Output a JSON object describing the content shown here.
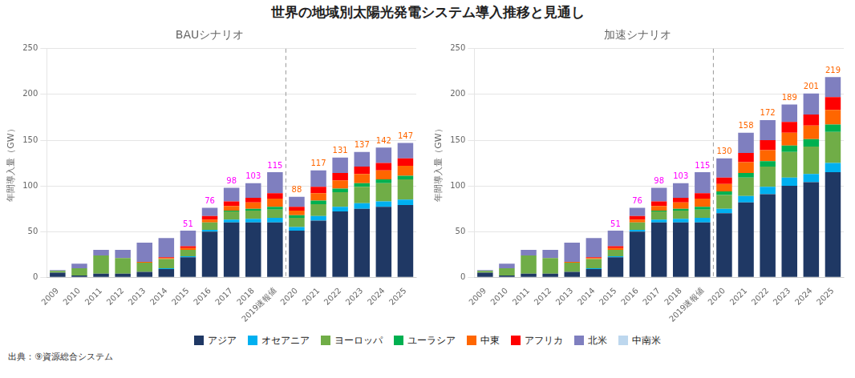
{
  "title": "世界の地域別太陽光発電システム導入推移と見通し",
  "subtitle": "出典：⑨資源総合システム",
  "legend": "bottom",
  "chart_data": [
    {
      "type": "bar",
      "stacked": true,
      "grid": true,
      "title": "BAUシナリオ",
      "ylabel": "年間導入量（GW）",
      "ylim": [
        0,
        250
      ],
      "yticks": [
        0,
        50,
        100,
        150,
        200,
        250
      ],
      "categories": [
        "2009",
        "2010",
        "2011",
        "2012",
        "2013",
        "2014",
        "2015",
        "2016",
        "2017",
        "2018",
        "2019速報値",
        "2020",
        "2021",
        "2022",
        "2023",
        "2024",
        "2025"
      ],
      "series": [
        {
          "name": "アジア",
          "color": "#1F3864",
          "values": [
            5,
            2,
            4,
            4,
            6,
            9,
            22,
            50,
            60,
            60,
            60,
            51,
            62,
            72,
            75,
            77,
            79
          ]
        },
        {
          "name": "オセアニア",
          "color": "#00B0F0",
          "values": [
            0,
            0,
            0,
            0,
            0,
            1,
            1,
            2,
            3,
            4,
            5,
            4,
            5,
            5,
            6,
            6,
            6
          ]
        },
        {
          "name": "ヨーロッパ",
          "color": "#70AD47",
          "values": [
            2,
            8,
            20,
            17,
            10,
            10,
            7,
            8,
            9,
            9,
            9,
            10,
            13,
            16,
            18,
            20,
            22
          ]
        },
        {
          "name": "ユーラシア",
          "color": "#00B050",
          "values": [
            0,
            0,
            0,
            0,
            0,
            0,
            0,
            0,
            1,
            2,
            3,
            3,
            4,
            4,
            4,
            4,
            4
          ]
        },
        {
          "name": "中東",
          "color": "#FF6600",
          "values": [
            0,
            0,
            0,
            0,
            1,
            1,
            2,
            3,
            5,
            7,
            9,
            5,
            8,
            9,
            10,
            10,
            11
          ]
        },
        {
          "name": "アフリカ",
          "color": "#FF0000",
          "values": [
            0,
            0,
            0,
            0,
            0,
            1,
            2,
            4,
            5,
            5,
            6,
            4,
            7,
            8,
            8,
            8,
            8
          ]
        },
        {
          "name": "北米",
          "color": "#7F7FBF",
          "values": [
            1,
            5,
            6,
            9,
            21,
            21,
            17,
            9,
            15,
            16,
            23,
            11,
            18,
            17,
            16,
            17,
            17
          ]
        },
        {
          "name": "中南米",
          "color": "#BDD7EE",
          "values": [
            0,
            0,
            0,
            0,
            0,
            0,
            0,
            0,
            0,
            0,
            0,
            0,
            0,
            0,
            0,
            0,
            0
          ]
        }
      ],
      "annotations": [
        {
          "category": "2015",
          "value": 51,
          "text": "51",
          "color": "#FF00FF"
        },
        {
          "category": "2016",
          "value": 76,
          "text": "76",
          "color": "#FF00FF"
        },
        {
          "category": "2017",
          "value": 98,
          "text": "98",
          "color": "#FF00FF"
        },
        {
          "category": "2018",
          "value": 103,
          "text": "103",
          "color": "#FF00FF"
        },
        {
          "category": "2019速報値",
          "value": 115,
          "text": "115",
          "color": "#FF00FF"
        },
        {
          "category": "2020",
          "value": 88,
          "text": "88",
          "color": "#FF6600"
        },
        {
          "category": "2021",
          "value": 117,
          "text": "117",
          "color": "#FF6600"
        },
        {
          "category": "2022",
          "value": 131,
          "text": "131",
          "color": "#FF6600"
        },
        {
          "category": "2023",
          "value": 137,
          "text": "137",
          "color": "#FF6600"
        },
        {
          "category": "2024",
          "value": 142,
          "text": "142",
          "color": "#FF6600"
        },
        {
          "category": "2025",
          "value": 147,
          "text": "147",
          "color": "#FF6600"
        }
      ],
      "vlines": [
        {
          "after": "2019速報値",
          "line_style": "dashed",
          "color": "#999999"
        }
      ]
    },
    {
      "type": "bar",
      "stacked": true,
      "grid": true,
      "title": "加速シナリオ",
      "ylabel": "年間導入量（GW）",
      "ylim": [
        0,
        250
      ],
      "yticks": [
        0,
        50,
        100,
        150,
        200,
        250
      ],
      "categories": [
        "2009",
        "2010",
        "2011",
        "2012",
        "2013",
        "2014",
        "2015",
        "2016",
        "2017",
        "2018",
        "2019速報値",
        "2020",
        "2021",
        "2022",
        "2023",
        "2024",
        "2025"
      ],
      "series": [
        {
          "name": "アジア",
          "color": "#1F3864",
          "values": [
            5,
            2,
            4,
            4,
            6,
            9,
            22,
            50,
            60,
            60,
            60,
            70,
            82,
            91,
            100,
            104,
            115
          ]
        },
        {
          "name": "オセアニア",
          "color": "#00B0F0",
          "values": [
            0,
            0,
            0,
            0,
            0,
            1,
            1,
            2,
            3,
            4,
            5,
            5,
            7,
            8,
            9,
            9,
            10
          ]
        },
        {
          "name": "ヨーロッパ",
          "color": "#70AD47",
          "values": [
            2,
            8,
            20,
            17,
            10,
            10,
            7,
            8,
            9,
            9,
            9,
            15,
            20,
            22,
            28,
            30,
            34
          ]
        },
        {
          "name": "ユーラシア",
          "color": "#00B050",
          "values": [
            0,
            0,
            0,
            0,
            0,
            0,
            0,
            0,
            1,
            2,
            3,
            4,
            5,
            6,
            7,
            8,
            8
          ]
        },
        {
          "name": "中東",
          "color": "#FF6600",
          "values": [
            0,
            0,
            0,
            0,
            1,
            1,
            2,
            3,
            5,
            7,
            9,
            8,
            12,
            12,
            14,
            15,
            16
          ]
        },
        {
          "name": "アフリカ",
          "color": "#FF0000",
          "values": [
            0,
            0,
            0,
            0,
            0,
            1,
            2,
            4,
            5,
            5,
            6,
            7,
            10,
            11,
            12,
            12,
            14
          ]
        },
        {
          "name": "北米",
          "color": "#7F7FBF",
          "values": [
            1,
            5,
            6,
            9,
            21,
            21,
            17,
            9,
            15,
            16,
            23,
            21,
            22,
            22,
            19,
            23,
            22
          ]
        },
        {
          "name": "中南米",
          "color": "#BDD7EE",
          "values": [
            0,
            0,
            0,
            0,
            0,
            0,
            0,
            0,
            0,
            0,
            0,
            0,
            0,
            0,
            0,
            0,
            0
          ]
        }
      ],
      "annotations": [
        {
          "category": "2015",
          "value": 51,
          "text": "51",
          "color": "#FF00FF"
        },
        {
          "category": "2016",
          "value": 76,
          "text": "76",
          "color": "#FF00FF"
        },
        {
          "category": "2017",
          "value": 98,
          "text": "98",
          "color": "#FF00FF"
        },
        {
          "category": "2018",
          "value": 103,
          "text": "103",
          "color": "#FF00FF"
        },
        {
          "category": "2019速報値",
          "value": 115,
          "text": "115",
          "color": "#FF00FF"
        },
        {
          "category": "2020",
          "value": 130,
          "text": "130",
          "color": "#FF6600"
        },
        {
          "category": "2021",
          "value": 158,
          "text": "158",
          "color": "#FF6600"
        },
        {
          "category": "2022",
          "value": 172,
          "text": "172",
          "color": "#FF6600"
        },
        {
          "category": "2023",
          "value": 189,
          "text": "189",
          "color": "#FF6600"
        },
        {
          "category": "2024",
          "value": 201,
          "text": "201",
          "color": "#FF6600"
        },
        {
          "category": "2025",
          "value": 219,
          "text": "219",
          "color": "#FF6600"
        }
      ],
      "vlines": [
        {
          "after": "2019速報値",
          "line_style": "dashed",
          "color": "#999999"
        }
      ]
    }
  ]
}
